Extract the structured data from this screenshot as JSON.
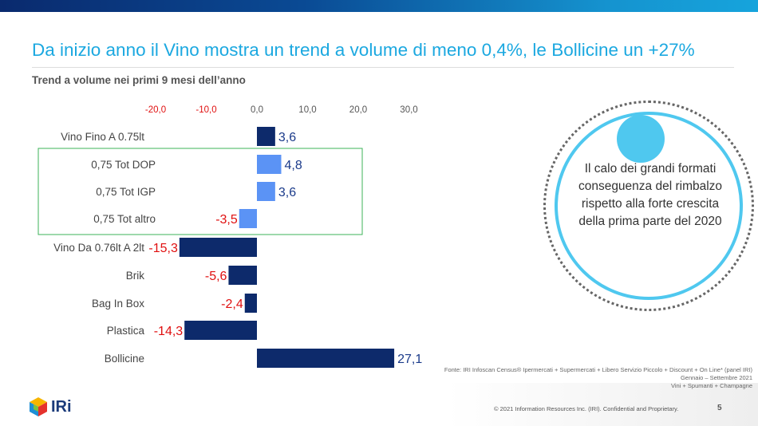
{
  "header": {
    "title": "Da inizio anno il Vino mostra un trend a volume di meno 0,4%, le Bollicine un +27%",
    "subtitle": "Trend a volume nei primi 9 mesi dell’anno"
  },
  "chart_data": {
    "type": "bar",
    "orientation": "horizontal",
    "categories": [
      "Vino Fino A 0.75lt",
      "0,75 Tot DOP",
      "0,75 Tot IGP",
      "0,75 Tot altro",
      "Vino Da 0.76lt A 2lt",
      "Brik",
      "Bag In Box",
      "Plastica",
      "Bollicine"
    ],
    "values": [
      3.6,
      4.8,
      3.6,
      -3.5,
      -15.3,
      -5.6,
      -2.4,
      -14.3,
      27.1
    ],
    "value_labels": [
      "3,6",
      "4,8",
      "3,6",
      "-3,5",
      "-15,3",
      "-5,6",
      "-2,4",
      "-14,3",
      "27,1"
    ],
    "bar_colors": [
      "#0d2a6b",
      "#5b93f5",
      "#5b93f5",
      "#5b93f5",
      "#0d2a6b",
      "#0d2a6b",
      "#0d2a6b",
      "#0d2a6b",
      "#0d2a6b"
    ],
    "xlim": [
      -20,
      30
    ],
    "ticks": [
      {
        "v": -20,
        "label": "-20,0"
      },
      {
        "v": -10,
        "label": "-10,0"
      },
      {
        "v": 0,
        "label": "0,0"
      },
      {
        "v": 10,
        "label": "10,0"
      },
      {
        "v": 20,
        "label": "20,0"
      },
      {
        "v": 30,
        "label": "30,0"
      }
    ],
    "positive_color": "#1a3a8a",
    "negative_color": "#e01010",
    "highlight_box_color": "#3cb35a"
  },
  "callout": {
    "text": "Il calo dei grandi formati conseguenza del rimbalzo rispetto alla forte crescita della prima parte del 2020"
  },
  "footer": {
    "source_lines": [
      "Fonte: IRI Infoscan Census® Ipermercati + Supermercati + Libero Servizio Piccolo  + Discount + On Line* (panel IRI)",
      "Gennaio – Settembre 2021",
      "Vini + Spumanti + Champagne"
    ],
    "copyright": "© 2021 Information Resources Inc. (IRI). Confidential and Proprietary.",
    "page": "5",
    "logo": "IRi"
  }
}
